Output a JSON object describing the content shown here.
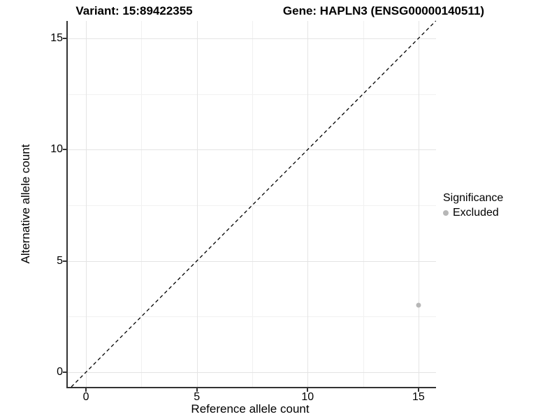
{
  "chart_data": {
    "type": "scatter",
    "title_variant": "Variant: 15:89422355",
    "title_gene": "Gene: HAPLN3 (ENSG00000140511)",
    "xlabel": "Reference allele count",
    "ylabel": "Alternative allele count",
    "xlim": [
      -0.82,
      15.79
    ],
    "ylim": [
      -0.66,
      15.78
    ],
    "x_ticks": [
      0,
      5,
      10,
      15
    ],
    "y_ticks": [
      0,
      5,
      10,
      15
    ],
    "x_minor_ticks": [
      2.5,
      7.5,
      12.5
    ],
    "y_minor_ticks": [
      2.5,
      7.5,
      12.5
    ],
    "grid": true,
    "series": [
      {
        "name": "Excluded",
        "color": "#b7b7b7",
        "points": [
          {
            "x": 15,
            "y": 3
          }
        ]
      }
    ],
    "reference_line": {
      "kind": "identity",
      "style": "dashed",
      "color": "#000000"
    },
    "legend": {
      "title": "Significance",
      "position": "right",
      "entries": [
        {
          "label": "Excluded",
          "color": "#b7b7b7"
        }
      ]
    },
    "colors": {
      "grid_major": "#e4e4e4",
      "grid_minor": "#f1f1f1",
      "axis_line": "#333333",
      "text": "#000000"
    }
  }
}
